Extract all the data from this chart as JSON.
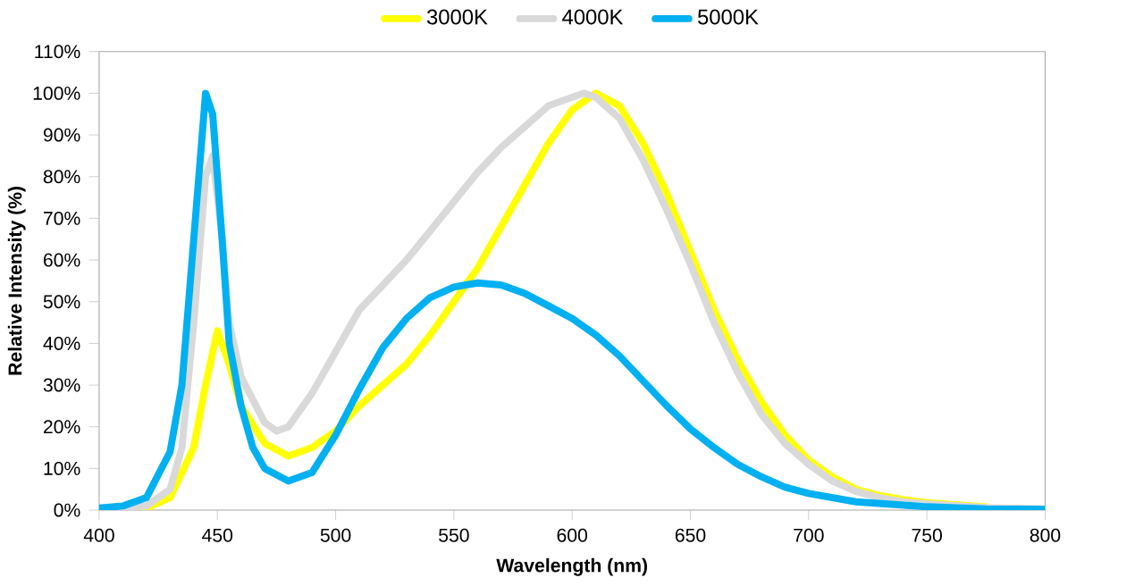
{
  "chart_data": {
    "type": "line",
    "xlabel": "Wavelength (nm)",
    "ylabel": "Relative Intensity (%)",
    "xlim": [
      400,
      800
    ],
    "xticks": [
      400,
      450,
      500,
      550,
      600,
      650,
      700,
      750,
      800
    ],
    "ylim": [
      0,
      110
    ],
    "yticks": [
      {
        "value": 0,
        "label": "0%"
      },
      {
        "value": 10,
        "label": "10%"
      },
      {
        "value": 20,
        "label": "20%"
      },
      {
        "value": 30,
        "label": "30%"
      },
      {
        "value": 40,
        "label": "40%"
      },
      {
        "value": 50,
        "label": "50%"
      },
      {
        "value": 60,
        "label": "60%"
      },
      {
        "value": 70,
        "label": "70%"
      },
      {
        "value": 80,
        "label": "80%"
      },
      {
        "value": 90,
        "label": "90%"
      },
      {
        "value": 100,
        "label": "100%"
      },
      {
        "value": 110,
        "label": "110%"
      }
    ],
    "grid": false,
    "legend": "top",
    "marker": "none",
    "line_style": "solid",
    "series": [
      {
        "name": "3000K",
        "color": "#ffff00",
        "x": [
          400,
          420,
          430,
          440,
          445,
          450,
          455,
          460,
          470,
          480,
          490,
          500,
          510,
          520,
          530,
          540,
          550,
          560,
          570,
          580,
          590,
          600,
          610,
          620,
          630,
          640,
          650,
          660,
          670,
          680,
          690,
          700,
          710,
          720,
          730,
          740,
          750,
          775
        ],
        "values": [
          0,
          0.5,
          3,
          15,
          30,
          43,
          35,
          25,
          16,
          13,
          15,
          19,
          25,
          30,
          35,
          42,
          50,
          58,
          68,
          78,
          88,
          96,
          100,
          97,
          88,
          76,
          62,
          48,
          36,
          26,
          18,
          12,
          8,
          5,
          3.5,
          2.5,
          1.8,
          0.8
        ]
      },
      {
        "name": "4000K",
        "color": "#d9d9d9",
        "x": [
          400,
          420,
          430,
          435,
          440,
          445,
          448,
          452,
          455,
          460,
          470,
          475,
          480,
          490,
          500,
          510,
          520,
          530,
          540,
          550,
          560,
          570,
          580,
          590,
          600,
          605,
          610,
          620,
          630,
          640,
          650,
          660,
          670,
          680,
          690,
          700,
          710,
          720,
          730,
          740,
          750,
          775,
          800
        ],
        "values": [
          0,
          1,
          5,
          15,
          45,
          80,
          85,
          65,
          45,
          32,
          21,
          19,
          20,
          28,
          38,
          48,
          54,
          60,
          67,
          74,
          81,
          87,
          92,
          97,
          99,
          100,
          99,
          94,
          84,
          72,
          59,
          45,
          33,
          23,
          16,
          11,
          7,
          4.5,
          3,
          2,
          1.5,
          0.6,
          0.3
        ]
      },
      {
        "name": "5000K",
        "color": "#00b0f0",
        "x": [
          400,
          410,
          420,
          430,
          435,
          440,
          445,
          448,
          452,
          455,
          460,
          465,
          470,
          480,
          490,
          500,
          510,
          520,
          530,
          540,
          550,
          560,
          570,
          580,
          590,
          600,
          610,
          620,
          630,
          640,
          650,
          660,
          670,
          680,
          690,
          700,
          720,
          750,
          775,
          800
        ],
        "values": [
          0.5,
          1,
          3,
          14,
          30,
          65,
          100,
          95,
          65,
          40,
          25,
          15,
          10,
          7,
          9,
          18,
          29,
          39,
          46,
          51,
          53.5,
          54.5,
          54,
          52,
          49,
          46,
          42,
          37,
          31,
          25,
          19.5,
          15,
          11,
          8,
          5.5,
          4,
          2,
          0.8,
          0.3,
          0.2
        ]
      }
    ]
  }
}
